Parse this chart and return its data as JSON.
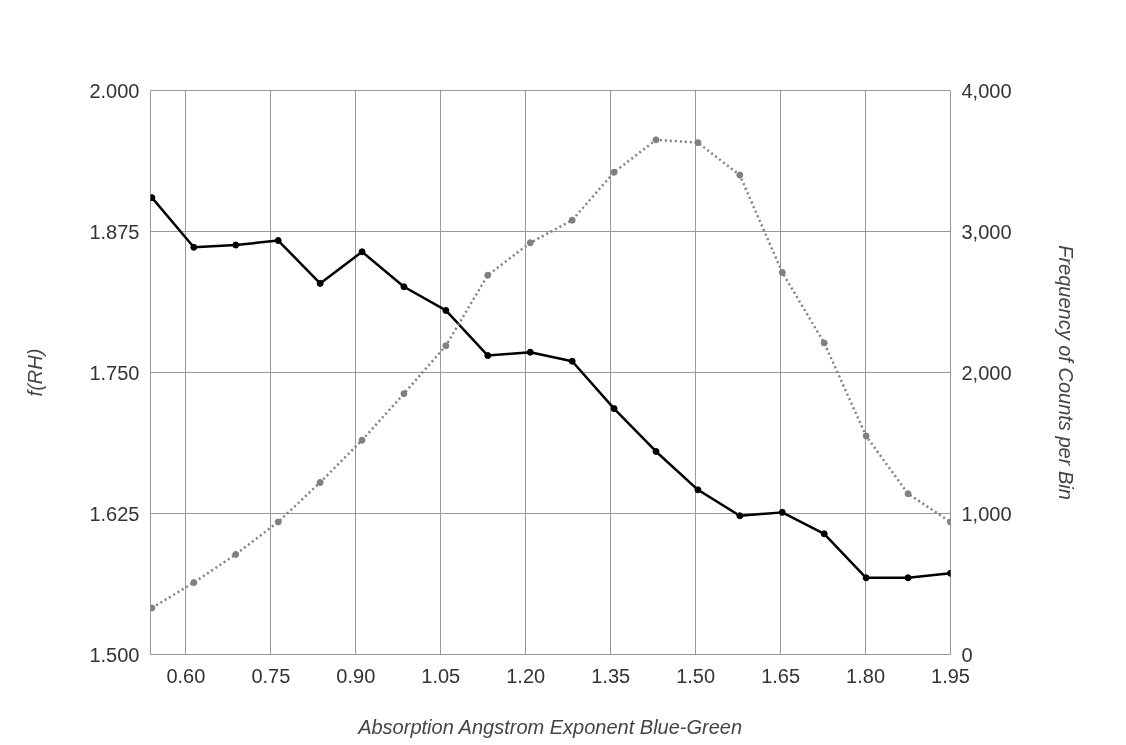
{
  "chart_data": {
    "type": "line",
    "xlabel": "Absorption Angstrom Exponent Blue-Green",
    "ylabel": "f(RH)",
    "y2label": "Frequency of Counts per Bin",
    "x": [
      0.54,
      0.614,
      0.688,
      0.763,
      0.837,
      0.911,
      0.985,
      1.059,
      1.133,
      1.208,
      1.282,
      1.356,
      1.43,
      1.504,
      1.578,
      1.653,
      1.727,
      1.801,
      1.875,
      1.95
    ],
    "series": [
      {
        "color": "#000000",
        "line_style": "solid",
        "values": [
          1.905,
          1.861,
          1.863,
          1.867,
          1.829,
          1.857,
          1.826,
          1.805,
          1.765,
          1.768,
          1.76,
          1.718,
          1.68,
          1.646,
          1.623,
          1.626,
          1.607,
          1.568,
          1.568,
          1.572
        ]
      },
      {
        "color": "#808080",
        "line_style": "dotted",
        "axis": "y2",
        "values": [
          330,
          510,
          710,
          940,
          1220,
          1520,
          1850,
          2190,
          2690,
          2920,
          3080,
          3420,
          3650,
          3630,
          3400,
          2710,
          2210,
          1550,
          1140,
          940
        ]
      }
    ],
    "marker": "circle",
    "grid": true,
    "xlim": [
      0.5375,
      1.95
    ],
    "xticks": [
      {
        "value": 0.6,
        "label": "0.60"
      },
      {
        "value": 0.75,
        "label": "0.75"
      },
      {
        "value": 0.9,
        "label": "0.90"
      },
      {
        "value": 1.05,
        "label": "1.05"
      },
      {
        "value": 1.2,
        "label": "1.20"
      },
      {
        "value": 1.35,
        "label": "1.35"
      },
      {
        "value": 1.5,
        "label": "1.50"
      },
      {
        "value": 1.65,
        "label": "1.65"
      },
      {
        "value": 1.8,
        "label": "1.80"
      },
      {
        "value": 1.95,
        "label": "1.95"
      }
    ],
    "ylim": [
      1.5,
      2.0
    ],
    "yticks": [
      {
        "value": 1.5,
        "label": "1.500"
      },
      {
        "value": 1.625,
        "label": "1.625"
      },
      {
        "value": 1.75,
        "label": "1.750"
      },
      {
        "value": 1.875,
        "label": "1.875"
      },
      {
        "value": 2.0,
        "label": "2.000"
      }
    ],
    "y2lim": [
      0,
      4000
    ],
    "y2ticks": [
      0,
      {
        "value": 1000,
        "label": "1,000"
      },
      {
        "value": 2000,
        "label": "2,000"
      },
      {
        "value": 3000,
        "label": "3,000"
      },
      {
        "value": 4000,
        "label": "4,000"
      }
    ]
  }
}
